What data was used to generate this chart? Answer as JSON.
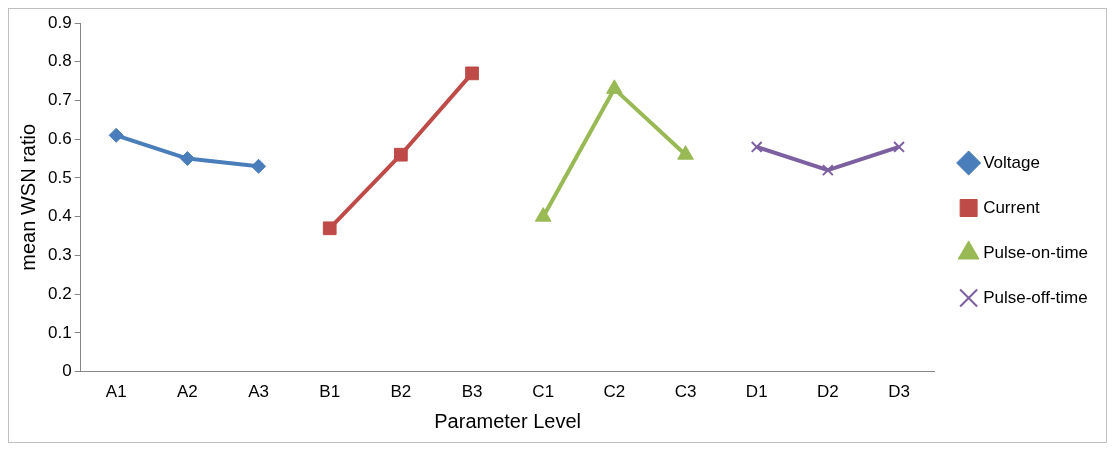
{
  "chart_data": {
    "type": "line",
    "xlabel": "Parameter Level",
    "ylabel": "mean WSN ratio",
    "categories": [
      "A1",
      "A2",
      "A3",
      "B1",
      "B2",
      "B3",
      "C1",
      "C2",
      "C3",
      "D1",
      "D2",
      "D3"
    ],
    "series": [
      {
        "name": "Voltage",
        "color": "#4a7ebb",
        "marker": "diamond",
        "values": [
          0.61,
          0.55,
          0.53,
          null,
          null,
          null,
          null,
          null,
          null,
          null,
          null,
          null
        ]
      },
      {
        "name": "Current",
        "color": "#be4b48",
        "marker": "square",
        "values": [
          null,
          null,
          null,
          0.37,
          0.56,
          0.77,
          null,
          null,
          null,
          null,
          null,
          null
        ]
      },
      {
        "name": "Pulse-on-time",
        "color": "#98b954",
        "marker": "triangle",
        "values": [
          null,
          null,
          null,
          null,
          null,
          null,
          0.4,
          0.73,
          0.56,
          null,
          null,
          null
        ]
      },
      {
        "name": "Pulse-off-time",
        "color": "#7d60a0",
        "marker": "cross",
        "values": [
          null,
          null,
          null,
          null,
          null,
          null,
          null,
          null,
          null,
          0.58,
          0.52,
          0.58
        ]
      }
    ],
    "ylim": [
      0,
      0.9
    ],
    "yticks": [
      0,
      0.1,
      0.2,
      0.3,
      0.4,
      0.5,
      0.6,
      0.7,
      0.8,
      0.9
    ],
    "grid": false,
    "legend": "right"
  }
}
